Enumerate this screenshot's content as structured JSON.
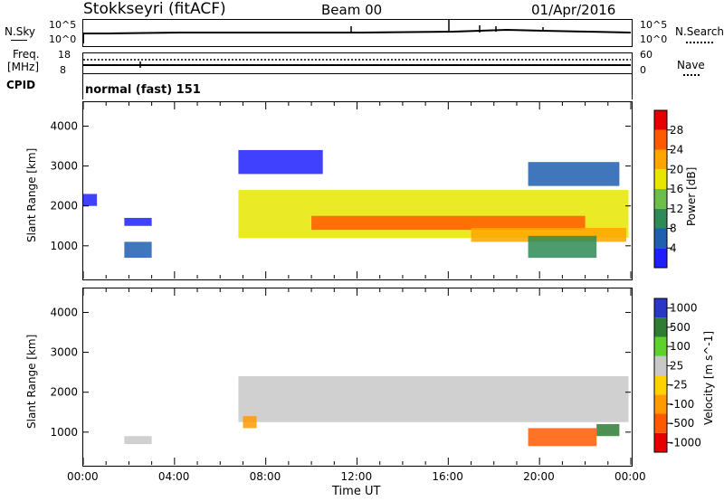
{
  "header": {
    "title": "Stokkseyri (fitACF)",
    "beam": "Beam 00",
    "date": "01/Apr/2016"
  },
  "top_panels": {
    "nsky_label": "N.Sky",
    "nsky_tick_top": "10^5",
    "nsky_tick_bottom": "10^0",
    "nsearch_label": "N.Search",
    "nsearch_tick_top": "10^5",
    "nsearch_tick_bottom": "10^0",
    "freq_label": "Freq.",
    "freq_unit": "[MHz]",
    "freq_tick_top": "18",
    "freq_tick_bottom": "8",
    "nave_label": "Nave",
    "nave_tick_top": "60",
    "nave_tick_bottom": "0",
    "cpid_label": "CPID",
    "cpid_value": "normal (fast) 151"
  },
  "chart_data": [
    {
      "type": "heatmap",
      "panel": "power",
      "ylabel": "Slant Range [km]",
      "ylim": [
        180,
        4600
      ],
      "yticks": [
        "1000",
        "2000",
        "3000",
        "4000"
      ],
      "xticks": [
        "00:00",
        "04:00",
        "08:00",
        "12:00",
        "16:00",
        "20:00",
        "00:00"
      ],
      "colorbar": {
        "label": "Power [dB]",
        "ticks": [
          "4",
          "8",
          "12",
          "16",
          "20",
          "24",
          "28"
        ],
        "colors": [
          "#1e1eff",
          "#1e5fb0",
          "#2e8b57",
          "#6cc04a",
          "#e6e600",
          "#ffa500",
          "#ff5a00",
          "#e60000"
        ]
      },
      "bands": [
        {
          "t0": 6.8,
          "t1": 23.9,
          "r0": 1200,
          "r1": 2400,
          "level": 4
        },
        {
          "t0": 10.0,
          "t1": 22.0,
          "r0": 1400,
          "r1": 1750,
          "level": 6
        },
        {
          "t0": 17.0,
          "t1": 23.8,
          "r0": 1100,
          "r1": 1450,
          "level": 5
        },
        {
          "t0": 19.5,
          "t1": 22.5,
          "r0": 700,
          "r1": 1250,
          "level": 2
        },
        {
          "t0": 19.5,
          "t1": 23.5,
          "r0": 2500,
          "r1": 3100,
          "level": 1
        },
        {
          "t0": 6.8,
          "t1": 10.5,
          "r0": 2800,
          "r1": 3400,
          "level": 0
        },
        {
          "t0": 1.8,
          "t1": 3.0,
          "r0": 700,
          "r1": 1100,
          "level": 1
        },
        {
          "t0": 1.8,
          "t1": 3.0,
          "r0": 1500,
          "r1": 1700,
          "level": 0
        },
        {
          "t0": 0.0,
          "t1": 0.6,
          "r0": 2000,
          "r1": 2300,
          "level": 0
        }
      ]
    },
    {
      "type": "heatmap",
      "panel": "velocity",
      "ylabel": "Slant Range [km]",
      "ylim": [
        180,
        4600
      ],
      "yticks": [
        "1000",
        "2000",
        "3000",
        "4000"
      ],
      "xticks": [
        "00:00",
        "04:00",
        "08:00",
        "12:00",
        "16:00",
        "20:00",
        "00:00"
      ],
      "xlabel": "Time UT",
      "colorbar": {
        "label": "Velocity [m s^-1]",
        "ticks": [
          "1000",
          "500",
          "100",
          "25",
          "-25",
          "-100",
          "-500",
          "-1000"
        ],
        "colors": [
          "#2a36c8",
          "#2e7d32",
          "#5fd12c",
          "#c8c8c8",
          "#ffd200",
          "#ff9a00",
          "#ff5a00",
          "#e60000"
        ]
      },
      "bands": [
        {
          "t0": 6.8,
          "t1": 23.9,
          "r0": 1250,
          "r1": 2400,
          "level": 3
        },
        {
          "t0": 19.5,
          "t1": 22.5,
          "r0": 650,
          "r1": 1100,
          "level": 6
        },
        {
          "t0": 22.5,
          "t1": 23.5,
          "r0": 900,
          "r1": 1200,
          "level": 1
        },
        {
          "t0": 1.8,
          "t1": 3.0,
          "r0": 700,
          "r1": 900,
          "level": 3
        },
        {
          "t0": 7.0,
          "t1": 7.6,
          "r0": 1100,
          "r1": 1400,
          "level": 5
        }
      ]
    }
  ]
}
